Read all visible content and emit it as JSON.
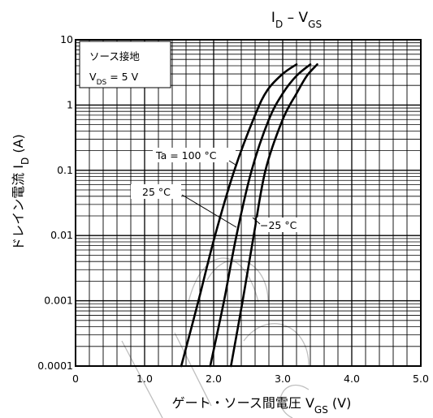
{
  "chart_data": {
    "type": "line",
    "title": {
      "main": "I",
      "sub": "D",
      "sep": " – ",
      "main2": "V",
      "sub2": "GS"
    },
    "xlabel": {
      "text": "ゲート・ソース間電圧",
      "sym": "V",
      "sub": "GS",
      "unit": "(V)"
    },
    "ylabel": {
      "text": "ドレイン電流",
      "sym": "I",
      "sub": "D",
      "unit": "(A)"
    },
    "x_scale": "linear",
    "y_scale": "log",
    "xlim": [
      0,
      5.0
    ],
    "ylim": [
      0.0001,
      10
    ],
    "x_ticks": [
      {
        "v": 0,
        "label": "0"
      },
      {
        "v": 1.0,
        "label": "1.0"
      },
      {
        "v": 2.0,
        "label": "2.0"
      },
      {
        "v": 3.0,
        "label": "3.0"
      },
      {
        "v": 4.0,
        "label": "4.0"
      },
      {
        "v": 5.0,
        "label": "5.0"
      }
    ],
    "y_ticks": [
      {
        "v": 0.0001,
        "label": "0.0001"
      },
      {
        "v": 0.001,
        "label": "0.001"
      },
      {
        "v": 0.01,
        "label": "0.01"
      },
      {
        "v": 0.1,
        "label": "0.1"
      },
      {
        "v": 1,
        "label": "1"
      },
      {
        "v": 10,
        "label": "10"
      }
    ],
    "grid": true,
    "legend_box": {
      "line1": "ソース接地",
      "line2_sym": "V",
      "line2_sub": "DS",
      "line2_val": " = 5 V"
    },
    "series": [
      {
        "name": "Ta = 100 °C",
        "points": [
          [
            1.53,
            0.0001
          ],
          [
            1.78,
            0.001
          ],
          [
            2.02,
            0.01
          ],
          [
            2.3,
            0.1
          ],
          [
            2.6,
            0.7
          ],
          [
            2.78,
            1.7
          ],
          [
            3.0,
            3.0
          ],
          [
            3.2,
            4.2
          ]
        ]
      },
      {
        "name": "25 °C",
        "points": [
          [
            1.95,
            0.0001
          ],
          [
            2.15,
            0.001
          ],
          [
            2.33,
            0.01
          ],
          [
            2.55,
            0.1
          ],
          [
            2.8,
            0.6
          ],
          [
            3.0,
            1.5
          ],
          [
            3.2,
            2.8
          ],
          [
            3.4,
            4.2
          ]
        ]
      },
      {
        "name": "−25 °C",
        "points": [
          [
            2.25,
            0.0001
          ],
          [
            2.42,
            0.001
          ],
          [
            2.58,
            0.01
          ],
          [
            2.75,
            0.1
          ],
          [
            3.0,
            0.6
          ],
          [
            3.2,
            1.5
          ],
          [
            3.35,
            2.8
          ],
          [
            3.5,
            4.2
          ]
        ]
      }
    ],
    "annotations": [
      {
        "text": "Ta = 100 °C",
        "series": 0
      },
      {
        "text": "25 °C",
        "series": 1
      },
      {
        "text": "−25 °C",
        "series": 2
      }
    ]
  }
}
